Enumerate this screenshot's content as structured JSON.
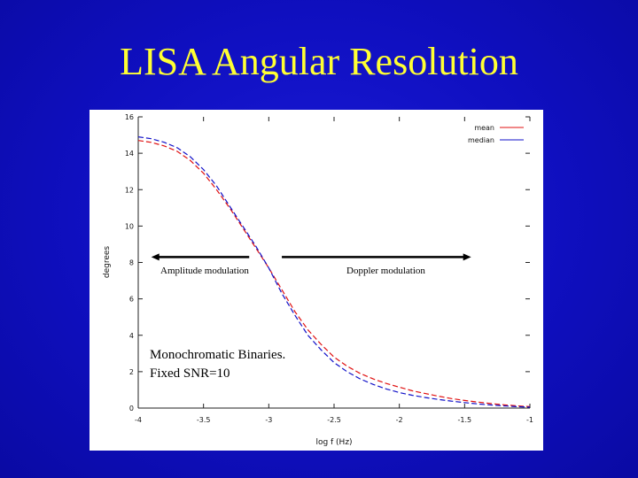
{
  "slide": {
    "title": "LISA Angular Resolution"
  },
  "chart_data": {
    "type": "line",
    "xlabel": "log f (Hz)",
    "ylabel": "degrees",
    "xlim": [
      -4,
      -1
    ],
    "ylim": [
      0,
      16
    ],
    "x_ticks": [
      "-4",
      "-3.5",
      "-3",
      "-2.5",
      "-2",
      "-1.5",
      "-1"
    ],
    "x_tick_values": [
      -4,
      -3.5,
      -3,
      -2.5,
      -2,
      -1.5,
      -1
    ],
    "y_ticks": [
      "0",
      "2",
      "4",
      "6",
      "8",
      "10",
      "12",
      "14",
      "16"
    ],
    "y_tick_values": [
      0,
      2,
      4,
      6,
      8,
      10,
      12,
      14,
      16
    ],
    "grid": false,
    "legend_position": "top-right",
    "series": [
      {
        "name": "mean",
        "color": "#e01010",
        "dash": "dashed",
        "x": [
          -4.0,
          -3.9,
          -3.8,
          -3.7,
          -3.6,
          -3.5,
          -3.4,
          -3.3,
          -3.2,
          -3.1,
          -3.0,
          -2.9,
          -2.8,
          -2.7,
          -2.6,
          -2.5,
          -2.4,
          -2.3,
          -2.2,
          -2.1,
          -2.0,
          -1.9,
          -1.8,
          -1.7,
          -1.6,
          -1.5,
          -1.4,
          -1.3,
          -1.2,
          -1.1,
          -1.0
        ],
        "y": [
          14.7,
          14.6,
          14.4,
          14.1,
          13.6,
          12.9,
          12.0,
          11.0,
          9.9,
          8.8,
          7.7,
          6.5,
          5.3,
          4.3,
          3.5,
          2.8,
          2.3,
          1.9,
          1.6,
          1.35,
          1.15,
          0.95,
          0.8,
          0.65,
          0.52,
          0.42,
          0.33,
          0.25,
          0.18,
          0.12,
          0.08
        ]
      },
      {
        "name": "median",
        "color": "#1010c8",
        "dash": "dashed",
        "x": [
          -4.0,
          -3.9,
          -3.8,
          -3.7,
          -3.6,
          -3.5,
          -3.4,
          -3.3,
          -3.2,
          -3.1,
          -3.0,
          -2.9,
          -2.8,
          -2.7,
          -2.6,
          -2.5,
          -2.4,
          -2.3,
          -2.2,
          -2.1,
          -2.0,
          -1.9,
          -1.8,
          -1.7,
          -1.6,
          -1.5,
          -1.4,
          -1.3,
          -1.2,
          -1.1,
          -1.0
        ],
        "y": [
          14.9,
          14.8,
          14.6,
          14.3,
          13.8,
          13.1,
          12.2,
          11.1,
          10.0,
          8.9,
          7.7,
          6.3,
          5.1,
          4.0,
          3.2,
          2.5,
          2.0,
          1.6,
          1.3,
          1.05,
          0.85,
          0.7,
          0.58,
          0.47,
          0.38,
          0.3,
          0.23,
          0.17,
          0.12,
          0.08,
          0.05
        ]
      }
    ],
    "annotations": [
      {
        "id": "amp",
        "text": "Amplitude modulation",
        "arrow": {
          "x_from": -3.15,
          "x_to": -3.9,
          "y": 8.3
        }
      },
      {
        "id": "dop",
        "text": "Doppler modulation",
        "arrow": {
          "x_from": -2.9,
          "x_to": -1.45,
          "y": 8.3
        }
      },
      {
        "id": "mono1",
        "text": "Monochromatic Binaries."
      },
      {
        "id": "mono2",
        "text": "Fixed SNR=10"
      }
    ]
  }
}
